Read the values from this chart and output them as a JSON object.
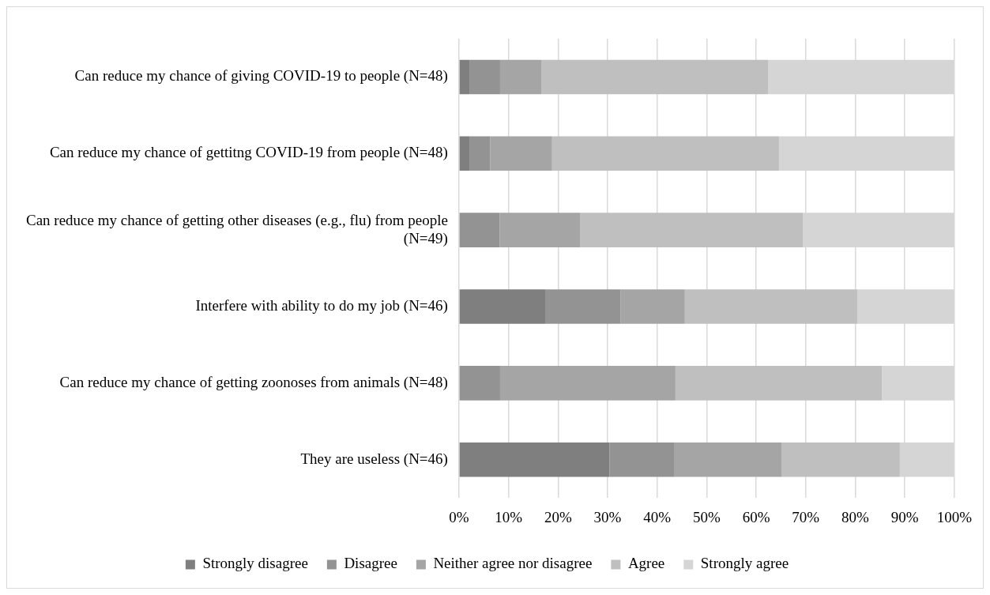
{
  "chart_data": {
    "type": "bar",
    "orientation": "horizontal",
    "stacked": true,
    "categories": [
      "Can reduce my chance of giving COVID-19 to people (N=48)",
      "Can reduce my chance of gettitng COVID-19 from people (N=48)",
      "Can reduce my chance of getting other diseases (e.g., flu) from people (N=49)",
      "Interfere with ability to do my job (N=46)",
      "Can reduce my chance of getting zoonoses from animals (N=48)",
      "They are useless (N=46)"
    ],
    "series": [
      {
        "name": "Strongly disagree",
        "color": "#7f7f7f",
        "values": [
          2.1,
          2.1,
          0,
          17.4,
          0,
          30.4
        ]
      },
      {
        "name": "Disagree",
        "color": "#939393",
        "values": [
          6.2,
          4.2,
          8.2,
          15.2,
          8.3,
          13.0
        ]
      },
      {
        "name": "Neither agree nor disagree",
        "color": "#a5a5a5",
        "values": [
          8.3,
          12.5,
          16.3,
          13.0,
          35.4,
          21.7
        ]
      },
      {
        "name": "Agree",
        "color": "#bfbfbf",
        "values": [
          45.8,
          45.8,
          44.9,
          34.8,
          41.7,
          23.9
        ]
      },
      {
        "name": "Strongly agree",
        "color": "#d5d5d5",
        "values": [
          37.5,
          35.4,
          30.6,
          19.6,
          14.6,
          10.9
        ]
      }
    ],
    "xlim": [
      0,
      100
    ],
    "xticks": [
      {
        "value": 0,
        "label": "0%"
      },
      {
        "value": 10,
        "label": "10%"
      },
      {
        "value": 20,
        "label": "20%"
      },
      {
        "value": 30,
        "label": "30%"
      },
      {
        "value": 40,
        "label": "40%"
      },
      {
        "value": 50,
        "label": "50%"
      },
      {
        "value": 60,
        "label": "60%"
      },
      {
        "value": 70,
        "label": "70%"
      },
      {
        "value": 80,
        "label": "80%"
      },
      {
        "value": 90,
        "label": "90%"
      },
      {
        "value": 100,
        "label": "100%"
      }
    ],
    "grid": "x",
    "legend": "bottom"
  }
}
